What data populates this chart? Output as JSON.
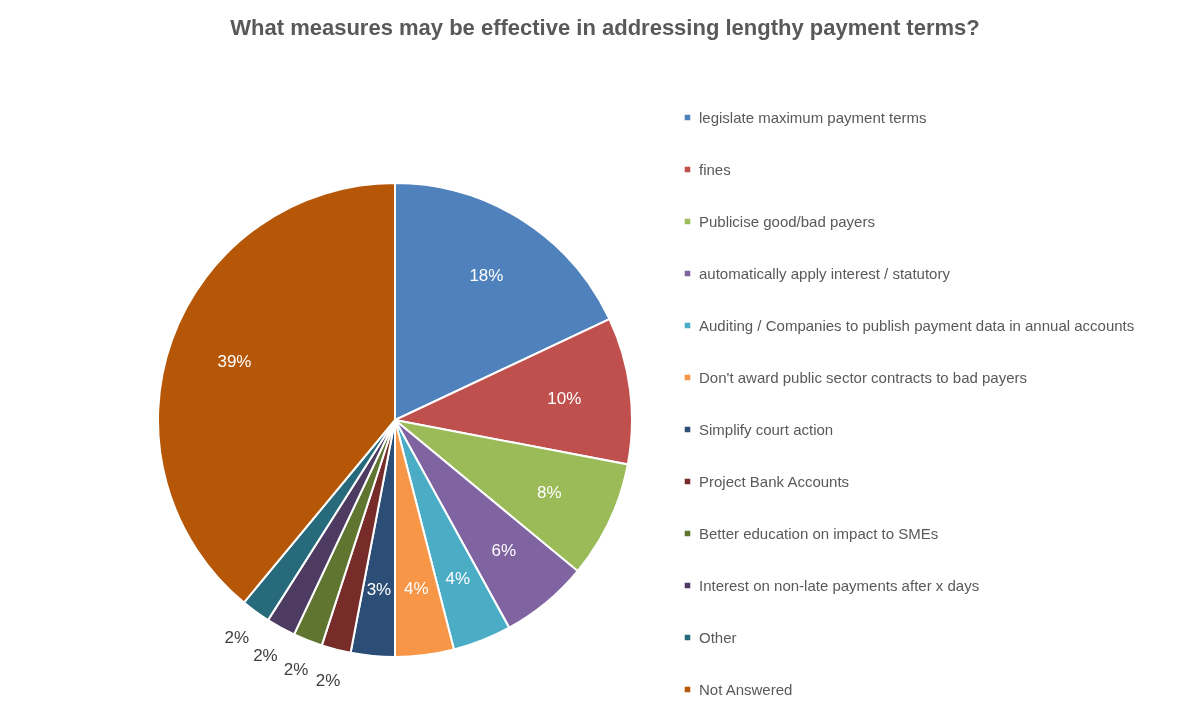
{
  "chart_data": {
    "type": "pie",
    "title": "What measures may be effective in addressing lengthy payment terms?",
    "categories": [
      "legislate maximum payment terms",
      "fines",
      "Publicise good/bad payers",
      "automatically apply interest / statutory",
      "Auditing / Companies to publish payment data in annual accounts",
      "Don't award public sector contracts to bad payers",
      "Simplify court action",
      "Project Bank Accounts",
      "Better education on impact to SMEs",
      "Interest on non-late payments after x days",
      "Other",
      "Not Answered"
    ],
    "values": [
      18,
      10,
      8,
      6,
      4,
      4,
      3,
      2,
      2,
      2,
      2,
      39
    ],
    "value_labels": [
      "18%",
      "10%",
      "8%",
      "6%",
      "4%",
      "4%",
      "3%",
      "2%",
      "2%",
      "2%",
      "2%",
      "39%"
    ],
    "colors": [
      "#4f81bd",
      "#c0504d",
      "#9bbb59",
      "#8064a2",
      "#4bacc6",
      "#f79646",
      "#2c4d75",
      "#772c2a",
      "#5f7530",
      "#4d3b62",
      "#276a7c",
      "#b65708"
    ],
    "legend": "right"
  }
}
